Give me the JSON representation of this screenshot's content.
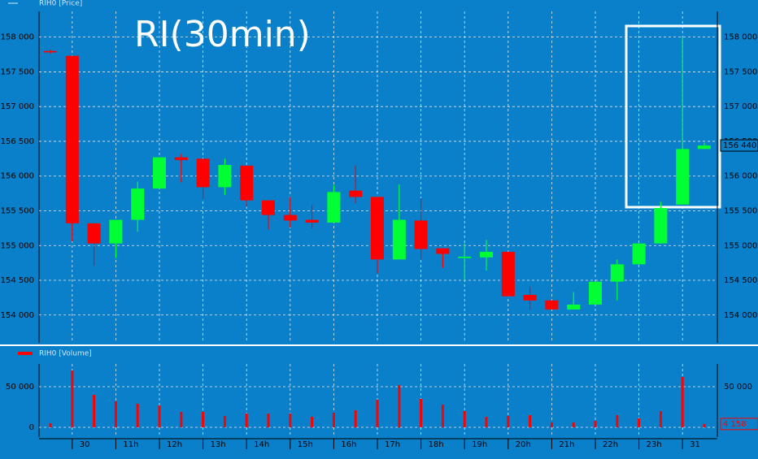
{
  "chart_data": [
    {
      "type": "candlestick",
      "title": "RI(30min)",
      "series_name": "RIH0 [Price]",
      "up_color": "#00ff33",
      "down_color": "#ff0000",
      "grid": true,
      "open": [
        157800,
        157730,
        155320,
        155030,
        155370,
        155820,
        156270,
        156250,
        155840,
        156150,
        155650,
        155440,
        155370,
        155330,
        155790,
        155700,
        154800,
        155360,
        154960,
        154820,
        154830,
        154910,
        154290,
        154210,
        154080,
        154150,
        154480,
        154730,
        155030,
        155590,
        156390
      ],
      "high": [
        157820,
        157730,
        155320,
        155370,
        155920,
        156270,
        156320,
        156250,
        156250,
        156150,
        155650,
        155700,
        155580,
        155870,
        156150,
        155700,
        155880,
        155680,
        154960,
        155030,
        155080,
        154910,
        154410,
        154210,
        154330,
        154480,
        154800,
        155030,
        155630,
        158000,
        156480
      ],
      "low": [
        157760,
        155060,
        154710,
        154820,
        155200,
        155820,
        155910,
        155670,
        155730,
        155560,
        155230,
        155260,
        155250,
        155330,
        155610,
        154600,
        154800,
        154800,
        154680,
        154500,
        154640,
        154270,
        154080,
        154080,
        154080,
        154150,
        154210,
        154730,
        155030,
        155590,
        156390
      ],
      "close": [
        157780,
        155320,
        155030,
        155370,
        155820,
        156270,
        156230,
        155840,
        156160,
        155650,
        155440,
        155360,
        155330,
        155770,
        155700,
        154800,
        155370,
        154950,
        154880,
        154840,
        154910,
        154270,
        154210,
        154080,
        154150,
        154480,
        154730,
        155030,
        155540,
        156390,
        156440
      ],
      "ylim": [
        153600,
        158370
      ],
      "yticks": [
        {
          "value": 154000,
          "label": "154 000"
        },
        {
          "value": 154500,
          "label": "154 500"
        },
        {
          "value": 155000,
          "label": "155 000"
        },
        {
          "value": 155500,
          "label": "155 500"
        },
        {
          "value": 156000,
          "label": "156 000"
        },
        {
          "value": 156500,
          "label": "156 500"
        },
        {
          "value": 157000,
          "label": "157 000"
        },
        {
          "value": 157500,
          "label": "157 500"
        },
        {
          "value": 158000,
          "label": "158 000"
        }
      ],
      "last_value": {
        "value": 156440,
        "label": "156 440"
      }
    },
    {
      "type": "bar",
      "series_name": "RIH0 [Volume]",
      "color": "#ff0000",
      "grid": true,
      "categories": [
        null,
        "30",
        null,
        "11h",
        null,
        "12h",
        null,
        "13h",
        null,
        "14h",
        null,
        "15h",
        null,
        "16h",
        null,
        "17h",
        null,
        "18h",
        null,
        "19h",
        null,
        "20h",
        null,
        "21h",
        null,
        "22h",
        null,
        "23h",
        null,
        "31",
        null
      ],
      "values": [
        5000,
        70000,
        40000,
        32000,
        29000,
        27000,
        19000,
        19000,
        14000,
        17000,
        17000,
        17000,
        13000,
        18000,
        21000,
        34000,
        52000,
        35000,
        28000,
        20000,
        13000,
        14000,
        15000,
        6000,
        6000,
        8000,
        15000,
        11000,
        20000,
        62000,
        4158
      ],
      "ylim": [
        -12000,
        78000
      ],
      "yticks": [
        0,
        {
          "value": 50000,
          "label": "50 000"
        }
      ],
      "last_value": {
        "value": 4158,
        "label": "4 158"
      }
    }
  ]
}
